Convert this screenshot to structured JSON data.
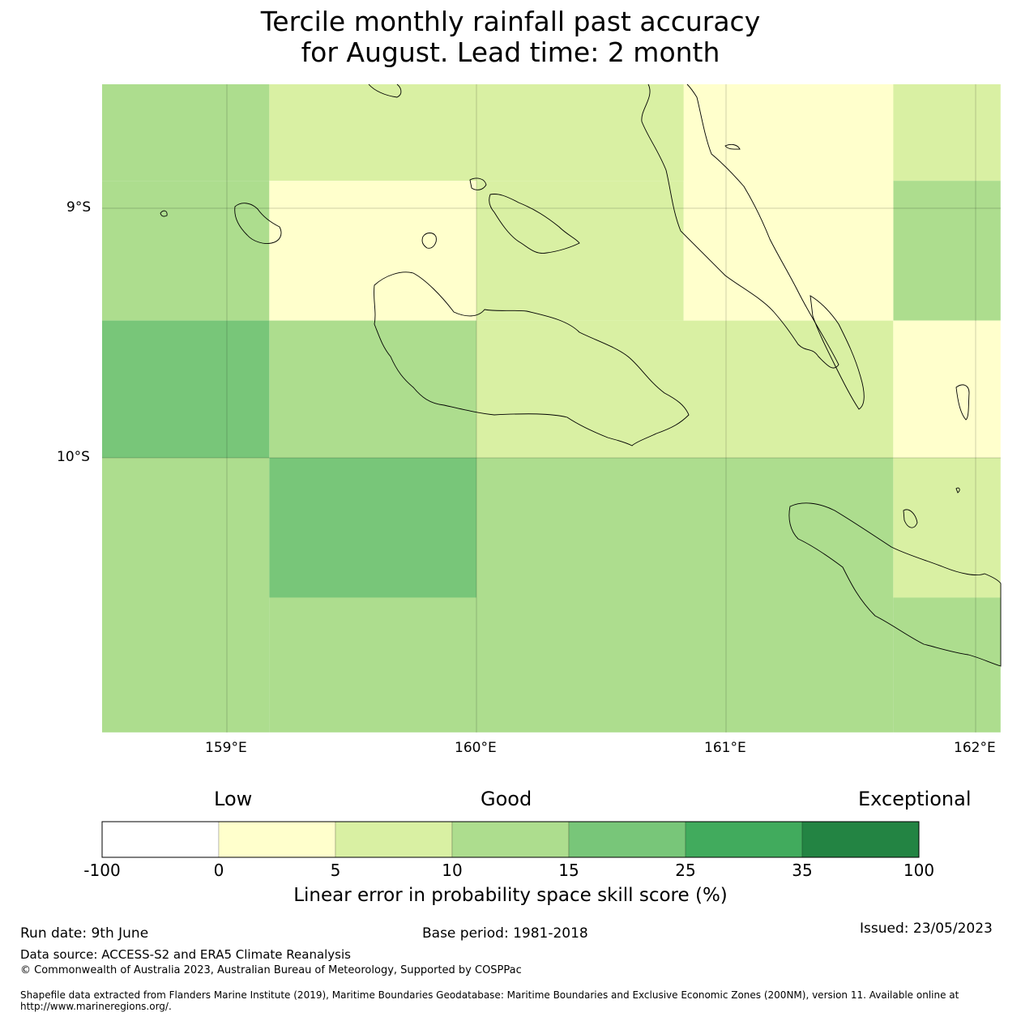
{
  "title_line1": "Tercile monthly rainfall past accuracy",
  "title_line2": "for August. Lead time: 2 month",
  "map": {
    "lon_range": [
      158.5,
      162.1
    ],
    "lat_range": [
      -8.5,
      -11.1
    ],
    "x_ticks": [
      "159°E",
      "160°E",
      "161°E",
      "162°E"
    ],
    "y_ticks": [
      "9°S",
      "10°S"
    ],
    "cells": [
      {
        "lon": [
          158.5,
          159.17
        ],
        "lat": [
          -8.5,
          -8.89
        ],
        "value": 12
      },
      {
        "lon": [
          159.17,
          161.67
        ],
        "lat": [
          -8.5,
          -8.89
        ],
        "value": 7
      },
      {
        "lon": [
          161.67,
          162.1
        ],
        "lat": [
          -8.5,
          -8.89
        ],
        "value": 7
      },
      {
        "lon": [
          158.5,
          159.17
        ],
        "lat": [
          -8.89,
          -9.45
        ],
        "value": 12
      },
      {
        "lon": [
          159.17,
          160.0
        ],
        "lat": [
          -8.89,
          -9.45
        ],
        "value": 3
      },
      {
        "lon": [
          160.0,
          160.83
        ],
        "lat": [
          -8.89,
          -9.45
        ],
        "value": 7
      },
      {
        "lon": [
          161.67,
          162.1
        ],
        "lat": [
          -8.89,
          -9.45
        ],
        "value": 12
      },
      {
        "lon": [
          158.5,
          159.17
        ],
        "lat": [
          -9.45,
          -10.0
        ],
        "value": 18
      },
      {
        "lon": [
          159.17,
          160.0
        ],
        "lat": [
          -9.45,
          -10.0
        ],
        "value": 12
      },
      {
        "lon": [
          160.0,
          161.67
        ],
        "lat": [
          -9.45,
          -10.0
        ],
        "value": 7
      },
      {
        "lon": [
          161.67,
          162.1
        ],
        "lat": [
          -9.45,
          -10.0
        ],
        "value": 3
      },
      {
        "lon": [
          158.5,
          159.17
        ],
        "lat": [
          -10.0,
          -11.1
        ],
        "value": 12
      },
      {
        "lon": [
          159.17,
          160.0
        ],
        "lat": [
          -10.0,
          -10.56
        ],
        "value": 18
      },
      {
        "lon": [
          160.0,
          161.67
        ],
        "lat": [
          -10.0,
          -11.1
        ],
        "value": 12
      },
      {
        "lon": [
          161.67,
          162.1
        ],
        "lat": [
          -10.0,
          -10.56
        ],
        "value": 7
      },
      {
        "lon": [
          159.17,
          160.0
        ],
        "lat": [
          -10.56,
          -11.1
        ],
        "value": 12
      },
      {
        "lon": [
          161.67,
          162.1
        ],
        "lat": [
          -10.56,
          -11.1
        ],
        "value": 12
      },
      {
        "lon": [
          160.83,
          161.67
        ],
        "lat": [
          -8.5,
          -9.45
        ],
        "value": 3
      }
    ]
  },
  "colorbar": {
    "categories": [
      "Low",
      "Good",
      "Exceptional"
    ],
    "boundaries": [
      "-100",
      "0",
      "5",
      "10",
      "15",
      "25",
      "35",
      "100"
    ],
    "bounds_numeric": [
      -100,
      0,
      5,
      10,
      15,
      25,
      35,
      100
    ],
    "colors": [
      "#ffffff",
      "#ffffcc",
      "#d9f0a3",
      "#addd8e",
      "#78c679",
      "#41ab5d",
      "#238443"
    ],
    "label": "Linear error in probability space skill score (%)"
  },
  "footer": {
    "run_date": "Run date: 9th June",
    "base_period": "Base period: 1981-2018",
    "issued": "Issued: 23/05/2023",
    "data_source": "Data source: ACCESS-S2 and ERA5 Climate Reanalysis",
    "copyright": "© Commonwealth of Australia 2023, Australian Bureau of Meteorology, Supported by COSPPac",
    "shapefile_note": "Shapefile data extracted from Flanders Marine Institute (2019), Maritime Boundaries Geodatabase: Maritime Boundaries and Exclusive Economic Zones (200NM), version 11. Available online at http://www.marineregions.org/."
  }
}
